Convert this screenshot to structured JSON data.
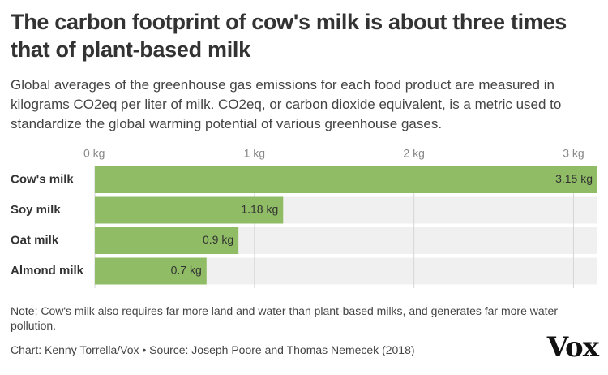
{
  "chart_data": {
    "type": "bar",
    "orientation": "horizontal",
    "title": "The carbon footprint of cow's milk is about three times that of plant-based milk",
    "subtitle": "Global averages of the greenhouse gas emissions for each food product are measured in kilograms CO2eq per liter of milk. CO2eq, or carbon dioxide equivalent, is a metric used to standardize the global warming potential of various greenhouse gases.",
    "categories": [
      "Cow's milk",
      "Soy milk",
      "Oat milk",
      "Almond milk"
    ],
    "values": [
      3.15,
      1.18,
      0.9,
      0.7
    ],
    "value_labels": [
      "3.15 kg",
      "1.18 kg",
      "0.9 kg",
      "0.7 kg"
    ],
    "color": "#8fbc64",
    "xlim": [
      0,
      3.15
    ],
    "xticks": [
      {
        "value": 0,
        "label": "0 kg"
      },
      {
        "value": 1,
        "label": "1 kg"
      },
      {
        "value": 2,
        "label": "2 kg"
      },
      {
        "value": 3,
        "label": "3 kg"
      }
    ],
    "grid": true,
    "note": "Note: Cow's milk also requires far more land and water than plant-based milks, and generates far more water pollution.",
    "credit": "Chart: Kenny Torrella/Vox • Source: Joseph Poore and Thomas Nemecek (2018)",
    "logo": "Vox"
  }
}
